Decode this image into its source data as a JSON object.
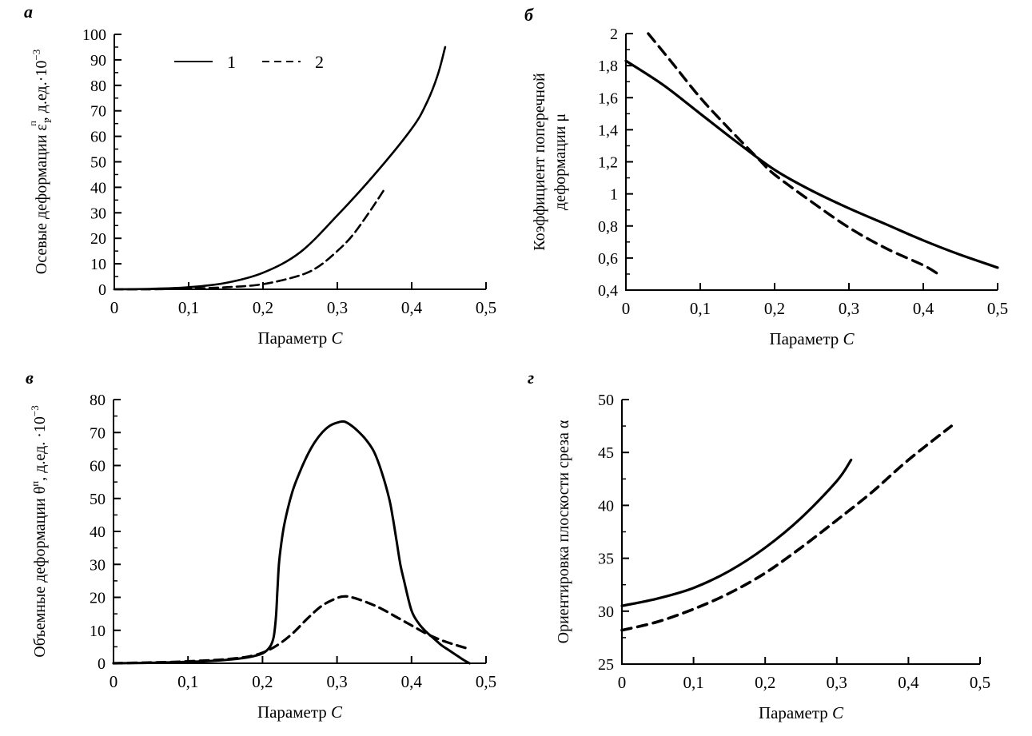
{
  "figure": {
    "background": "#ffffff",
    "line_color": "#000000",
    "x_axis_title": "Параметр С",
    "legend": {
      "items": [
        {
          "label": "1",
          "style": "solid"
        },
        {
          "label": "2",
          "style": "dashed"
        }
      ]
    }
  },
  "chart_data": [
    {
      "id": "a",
      "letter": "а",
      "type": "line",
      "title": "",
      "ylabel_text": "Осевые деформации ε1^п, д.ед.·10^-3",
      "ylabel_lines": [
        [
          {
            "t": "Осевые деформации "
          },
          {
            "t": "ε",
            "stack": {
              "sub": "1",
              "sup": "п"
            }
          },
          {
            "t": ", д.ед.·10"
          },
          {
            "t": "−3",
            "sup": true
          }
        ]
      ],
      "xlabel_segments": [
        {
          "t": "Параметр "
        },
        {
          "t": "С",
          "italic": true
        }
      ],
      "xlim": [
        0,
        0.5
      ],
      "xticks": [
        0,
        0.1,
        0.2,
        0.3,
        0.4,
        0.5
      ],
      "xtick_labels": [
        "0",
        "0,1",
        "0,2",
        "0,3",
        "0,4",
        "0,5"
      ],
      "ylim": [
        0,
        100
      ],
      "yticks": [
        0,
        10,
        20,
        30,
        40,
        50,
        60,
        70,
        80,
        90,
        100
      ],
      "ytick_labels": [
        "0",
        "10",
        "20",
        "30",
        "40",
        "50",
        "60",
        "70",
        "80",
        "90",
        "100"
      ],
      "y_minor_step": 5,
      "grid": false,
      "legend": true,
      "series": [
        {
          "name": "1",
          "style": "solid",
          "points": [
            [
              0,
              0
            ],
            [
              0.05,
              0.2
            ],
            [
              0.1,
              0.8
            ],
            [
              0.15,
              2.5
            ],
            [
              0.2,
              6.5
            ],
            [
              0.25,
              14.5
            ],
            [
              0.3,
              29
            ],
            [
              0.35,
              45
            ],
            [
              0.4,
              63
            ],
            [
              0.42,
              73
            ],
            [
              0.435,
              84
            ],
            [
              0.445,
              95
            ]
          ]
        },
        {
          "name": "2",
          "style": "dashed",
          "points": [
            [
              0,
              0
            ],
            [
              0.05,
              0
            ],
            [
              0.1,
              0.3
            ],
            [
              0.15,
              0.8
            ],
            [
              0.2,
              2
            ],
            [
              0.25,
              5.5
            ],
            [
              0.275,
              9
            ],
            [
              0.3,
              15
            ],
            [
              0.32,
              21
            ],
            [
              0.34,
              29
            ],
            [
              0.355,
              35.5
            ],
            [
              0.365,
              40
            ]
          ]
        }
      ]
    },
    {
      "id": "b",
      "letter": "б",
      "type": "line",
      "title": "",
      "ylabel_text": "Коэффициент поперечной деформации μ",
      "ylabel_lines": [
        [
          {
            "t": "Коэффициент поперечной"
          }
        ],
        [
          {
            "t": "деформации μ"
          }
        ]
      ],
      "xlabel_segments": [
        {
          "t": "Параметр "
        },
        {
          "t": "С",
          "italic": true
        }
      ],
      "xlim": [
        0,
        0.5
      ],
      "xticks": [
        0,
        0.1,
        0.2,
        0.3,
        0.4,
        0.5
      ],
      "xtick_labels": [
        "0",
        "0,1",
        "0,2",
        "0,3",
        "0,4",
        "0,5"
      ],
      "ylim": [
        0.4,
        2
      ],
      "yticks": [
        0.4,
        0.6,
        0.8,
        1,
        1.2,
        1.4,
        1.6,
        1.8,
        2
      ],
      "ytick_labels": [
        "0,4",
        "0,6",
        "0,8",
        "1",
        "1,2",
        "1,4",
        "1,6",
        "1,8",
        "2"
      ],
      "y_minor_step": 0.1,
      "grid": false,
      "legend": false,
      "series": [
        {
          "name": "1",
          "style": "solid",
          "points": [
            [
              0,
              1.83
            ],
            [
              0.05,
              1.68
            ],
            [
              0.1,
              1.5
            ],
            [
              0.15,
              1.32
            ],
            [
              0.2,
              1.15
            ],
            [
              0.25,
              1.02
            ],
            [
              0.3,
              0.91
            ],
            [
              0.35,
              0.81
            ],
            [
              0.4,
              0.71
            ],
            [
              0.45,
              0.62
            ],
            [
              0.5,
              0.54
            ]
          ]
        },
        {
          "name": "2",
          "style": "dashed",
          "points": [
            [
              0.03,
              2.0
            ],
            [
              0.06,
              1.83
            ],
            [
              0.1,
              1.6
            ],
            [
              0.14,
              1.4
            ],
            [
              0.18,
              1.21
            ],
            [
              0.2,
              1.12
            ],
            [
              0.25,
              0.95
            ],
            [
              0.3,
              0.79
            ],
            [
              0.35,
              0.66
            ],
            [
              0.4,
              0.555
            ],
            [
              0.42,
              0.5
            ]
          ]
        }
      ]
    },
    {
      "id": "v",
      "letter": "в",
      "type": "line",
      "title": "",
      "ylabel_text": "Объемные деформации θ^п, д.ед. ·10^-3",
      "ylabel_lines": [
        [
          {
            "t": "Объемные деформации "
          },
          {
            "t": "θ"
          },
          {
            "t": "п",
            "sup": true
          },
          {
            "t": ", д.ед. ·10"
          },
          {
            "t": "−3",
            "sup": true
          }
        ]
      ],
      "xlabel_segments": [
        {
          "t": "Параметр "
        },
        {
          "t": "С",
          "italic": true
        }
      ],
      "xlim": [
        0,
        0.5
      ],
      "xticks": [
        0,
        0.1,
        0.2,
        0.3,
        0.4,
        0.5
      ],
      "xtick_labels": [
        "0",
        "0,1",
        "0,2",
        "0,3",
        "0,4",
        "0,5"
      ],
      "ylim": [
        0,
        80
      ],
      "yticks": [
        0,
        10,
        20,
        30,
        40,
        50,
        60,
        70,
        80
      ],
      "ytick_labels": [
        "0",
        "10",
        "20",
        "30",
        "40",
        "50",
        "60",
        "70",
        "80"
      ],
      "y_minor_step": 5,
      "grid": false,
      "legend": false,
      "series": [
        {
          "name": "1",
          "style": "solid",
          "points": [
            [
              0,
              0
            ],
            [
              0.04,
              0.1
            ],
            [
              0.08,
              0.3
            ],
            [
              0.12,
              0.6
            ],
            [
              0.15,
              1
            ],
            [
              0.18,
              1.8
            ],
            [
              0.2,
              3
            ],
            [
              0.21,
              5
            ],
            [
              0.215,
              8
            ],
            [
              0.218,
              14
            ],
            [
              0.22,
              22
            ],
            [
              0.222,
              30
            ],
            [
              0.225,
              36
            ],
            [
              0.23,
              43
            ],
            [
              0.24,
              52
            ],
            [
              0.25,
              58
            ],
            [
              0.26,
              63
            ],
            [
              0.27,
              67
            ],
            [
              0.28,
              70
            ],
            [
              0.29,
              72
            ],
            [
              0.3,
              73
            ],
            [
              0.31,
              73.3
            ],
            [
              0.32,
              72
            ],
            [
              0.33,
              70
            ],
            [
              0.34,
              67.5
            ],
            [
              0.35,
              64
            ],
            [
              0.36,
              58
            ],
            [
              0.37,
              50
            ],
            [
              0.375,
              44
            ],
            [
              0.38,
              37
            ],
            [
              0.385,
              30
            ],
            [
              0.39,
              25
            ],
            [
              0.4,
              16
            ],
            [
              0.41,
              12
            ],
            [
              0.42,
              9.5
            ],
            [
              0.43,
              7.5
            ],
            [
              0.44,
              5.5
            ],
            [
              0.45,
              4
            ],
            [
              0.46,
              2.5
            ],
            [
              0.47,
              1
            ],
            [
              0.478,
              0
            ]
          ]
        },
        {
          "name": "2",
          "style": "dashed",
          "points": [
            [
              0,
              0
            ],
            [
              0.04,
              0.2
            ],
            [
              0.08,
              0.4
            ],
            [
              0.12,
              0.8
            ],
            [
              0.15,
              1.2
            ],
            [
              0.18,
              2
            ],
            [
              0.2,
              3.2
            ],
            [
              0.22,
              5.5
            ],
            [
              0.24,
              9
            ],
            [
              0.26,
              13.5
            ],
            [
              0.28,
              17.5
            ],
            [
              0.3,
              19.8
            ],
            [
              0.31,
              20.3
            ],
            [
              0.32,
              20
            ],
            [
              0.34,
              18.5
            ],
            [
              0.36,
              16.5
            ],
            [
              0.38,
              14
            ],
            [
              0.4,
              11.5
            ],
            [
              0.42,
              9
            ],
            [
              0.44,
              7
            ],
            [
              0.46,
              5.5
            ],
            [
              0.475,
              4.5
            ]
          ]
        }
      ]
    },
    {
      "id": "g",
      "letter": "г",
      "type": "line",
      "title": "",
      "ylabel_text": "Ориентировка плоскости среза α",
      "ylabel_lines": [
        [
          {
            "t": "Ориентировка плоскости среза α"
          }
        ]
      ],
      "xlabel_segments": [
        {
          "t": "Параметр "
        },
        {
          "t": "С",
          "italic": true
        }
      ],
      "xlim": [
        0,
        0.5
      ],
      "xticks": [
        0,
        0.1,
        0.2,
        0.3,
        0.4,
        0.5
      ],
      "xtick_labels": [
        "0",
        "0,1",
        "0,2",
        "0,3",
        "0,4",
        "0,5"
      ],
      "ylim": [
        25,
        50
      ],
      "yticks": [
        25,
        30,
        35,
        40,
        45,
        50
      ],
      "ytick_labels": [
        "25",
        "30",
        "35",
        "40",
        "45",
        "50"
      ],
      "y_minor_step": 2.5,
      "grid": false,
      "legend": false,
      "series": [
        {
          "name": "1",
          "style": "solid",
          "points": [
            [
              0,
              30.5
            ],
            [
              0.05,
              31.2
            ],
            [
              0.1,
              32.2
            ],
            [
              0.15,
              33.8
            ],
            [
              0.2,
              36
            ],
            [
              0.25,
              38.8
            ],
            [
              0.3,
              42.3
            ],
            [
              0.32,
              44.3
            ]
          ]
        },
        {
          "name": "2",
          "style": "dashed",
          "points": [
            [
              0,
              28.2
            ],
            [
              0.05,
              29
            ],
            [
              0.1,
              30.2
            ],
            [
              0.15,
              31.7
            ],
            [
              0.2,
              33.6
            ],
            [
              0.25,
              36
            ],
            [
              0.3,
              38.6
            ],
            [
              0.35,
              41.3
            ],
            [
              0.4,
              44.3
            ],
            [
              0.46,
              47.5
            ]
          ]
        }
      ]
    }
  ]
}
